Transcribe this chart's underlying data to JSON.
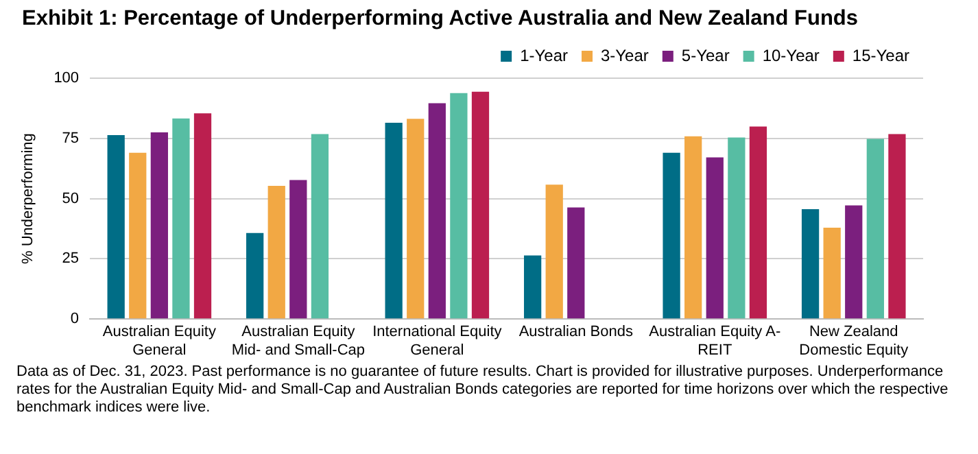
{
  "chart_data": {
    "type": "bar",
    "title": "Exhibit 1: Percentage of Underperforming Active Australia and New Zealand Funds",
    "ylabel": "% Underperforming",
    "categories": [
      "Australian Equity General",
      "Australian Equity Mid- and Small-Cap",
      "International Equity General",
      "Australian Bonds",
      "Australian Equity A-REIT",
      "New Zealand Domestic Equity"
    ],
    "series": [
      {
        "name": "1-Year",
        "color": "#006d86",
        "values": [
          76.4,
          35.7,
          81.5,
          26.4,
          69.0,
          45.6
        ]
      },
      {
        "name": "3-Year",
        "color": "#f2a844",
        "values": [
          69.0,
          55.3,
          83.1,
          55.8,
          75.9,
          37.9
        ]
      },
      {
        "name": "5-Year",
        "color": "#7b1f7e",
        "values": [
          77.5,
          57.7,
          89.6,
          46.3,
          67.1,
          47.2
        ]
      },
      {
        "name": "10-Year",
        "color": "#57bda3",
        "values": [
          83.3,
          76.8,
          93.8,
          null,
          75.4,
          74.8
        ]
      },
      {
        "name": "15-Year",
        "color": "#bb1f4f",
        "values": [
          85.4,
          null,
          94.4,
          null,
          79.9,
          76.8
        ]
      }
    ],
    "ylim": [
      0,
      100
    ],
    "yticks": [
      0,
      25,
      50,
      75,
      100
    ],
    "grid": "y",
    "legend": "top right",
    "annotations": [
      "Data as of Dec. 31, 2023.  Past performance is no guarantee of future results.  Chart is provided for illustrative purposes.  Underperformance rates for the Australian Equity Mid- and Small-Cap and Australian Bonds categories are reported for time horizons over which the respective benchmark indices were live."
    ]
  }
}
